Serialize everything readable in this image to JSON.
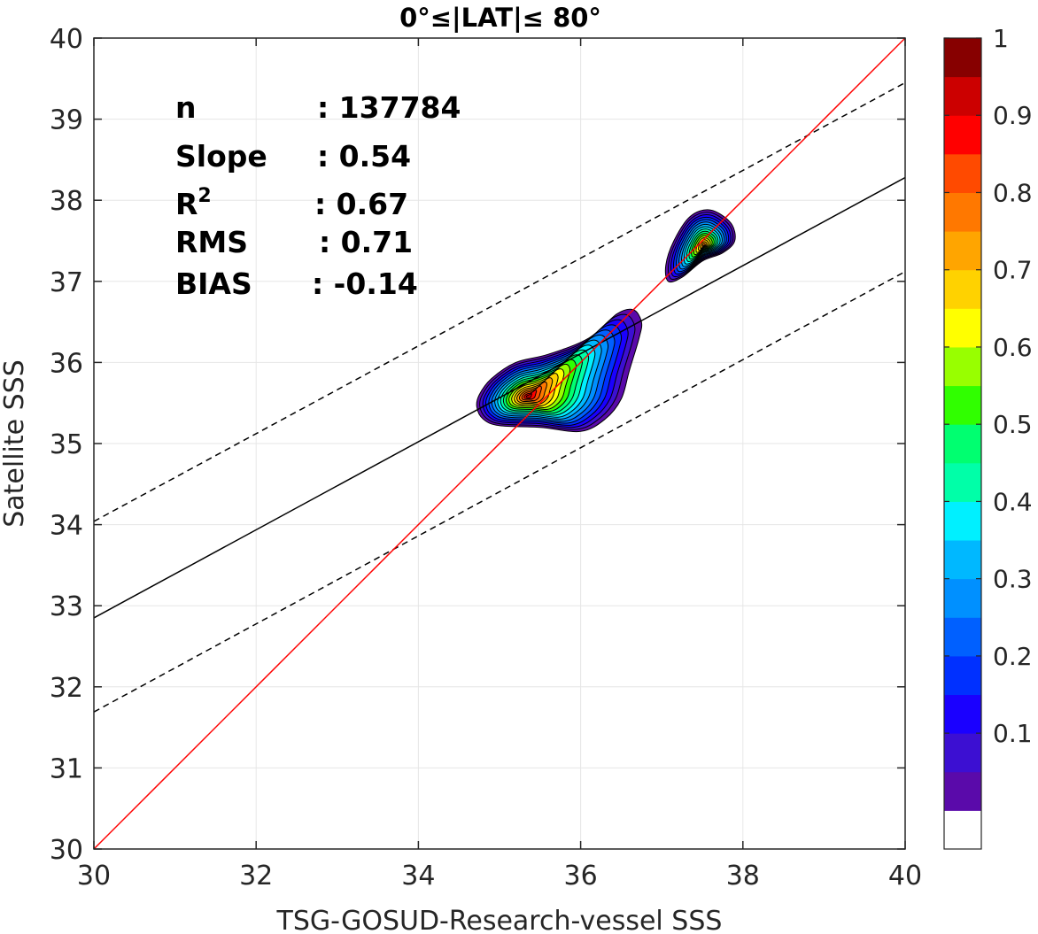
{
  "chart_data": {
    "type": "contour",
    "title": "0°≤|LAT|≤ 80°",
    "xlabel": "TSG-GOSUD-Research-vessel SSS",
    "ylabel": "Satellite SSS",
    "xlim": [
      30,
      40
    ],
    "ylim": [
      30,
      40
    ],
    "xticks": [
      "30",
      "32",
      "34",
      "36",
      "38",
      "40"
    ],
    "yticks": [
      "30",
      "31",
      "32",
      "33",
      "34",
      "35",
      "36",
      "37",
      "38",
      "39",
      "40"
    ],
    "grid": true,
    "stats": [
      {
        "label": "n",
        "value": ": 137784"
      },
      {
        "label": "Slope",
        "value": ": 0.54"
      },
      {
        "label": "R",
        "sup": "2",
        "value": ": 0.67"
      },
      {
        "label": "RMS",
        "value": ": 0.71"
      },
      {
        "label": "BIAS",
        "value": ": -0.14"
      }
    ],
    "lines": {
      "identity": {
        "x": [
          30,
          40
        ],
        "y": [
          30,
          40
        ],
        "color": "#ff0000"
      },
      "fit": {
        "x": [
          30,
          40
        ],
        "y": [
          32.85,
          38.28
        ],
        "color": "#000000"
      },
      "fit_upper": {
        "x": [
          30,
          40
        ],
        "y": [
          34.04,
          39.45
        ],
        "color": "#000000"
      },
      "fit_lower": {
        "x": [
          30,
          40
        ],
        "y": [
          31.69,
          37.12
        ],
        "color": "#000000"
      }
    },
    "clusters": [
      {
        "name": "main",
        "center": [
          35.35,
          35.58
        ],
        "peak": 0.97,
        "outline": [
          [
            34.72,
            35.45
          ],
          [
            34.8,
            35.3
          ],
          [
            35.0,
            35.22
          ],
          [
            35.5,
            35.2
          ],
          [
            36.0,
            35.15
          ],
          [
            36.3,
            35.3
          ],
          [
            36.5,
            35.55
          ],
          [
            36.6,
            35.9
          ],
          [
            36.72,
            36.3
          ],
          [
            36.75,
            36.5
          ],
          [
            36.65,
            36.65
          ],
          [
            36.45,
            36.6
          ],
          [
            36.1,
            36.3
          ],
          [
            35.6,
            36.1
          ],
          [
            35.2,
            36.0
          ],
          [
            34.9,
            35.8
          ],
          [
            34.75,
            35.6
          ]
        ]
      },
      {
        "name": "upper",
        "center": [
          37.52,
          37.45
        ],
        "peak": 0.78,
        "outline": [
          [
            37.05,
            37.2
          ],
          [
            37.15,
            37.5
          ],
          [
            37.35,
            37.8
          ],
          [
            37.6,
            37.88
          ],
          [
            37.85,
            37.72
          ],
          [
            37.9,
            37.5
          ],
          [
            37.75,
            37.35
          ],
          [
            37.5,
            37.25
          ],
          [
            37.25,
            37.05
          ],
          [
            37.08,
            37.0
          ]
        ]
      }
    ],
    "colorbar": {
      "ticks": [
        "0.1",
        "0.2",
        "0.3",
        "0.4",
        "0.5",
        "0.6",
        "0.7",
        "0.8",
        "0.9",
        "1"
      ],
      "levels": 20,
      "colors": [
        "#ffffff",
        "#5a0aaa",
        "#3c0fd2",
        "#1a00ff",
        "#0030ff",
        "#0060ff",
        "#0090ff",
        "#00b8ff",
        "#00f0ff",
        "#00ffa8",
        "#00ff70",
        "#30ff00",
        "#98ff00",
        "#ffff00",
        "#ffd200",
        "#ffa500",
        "#ff7800",
        "#ff4a00",
        "#ff0000",
        "#cc0000",
        "#870000"
      ]
    }
  }
}
